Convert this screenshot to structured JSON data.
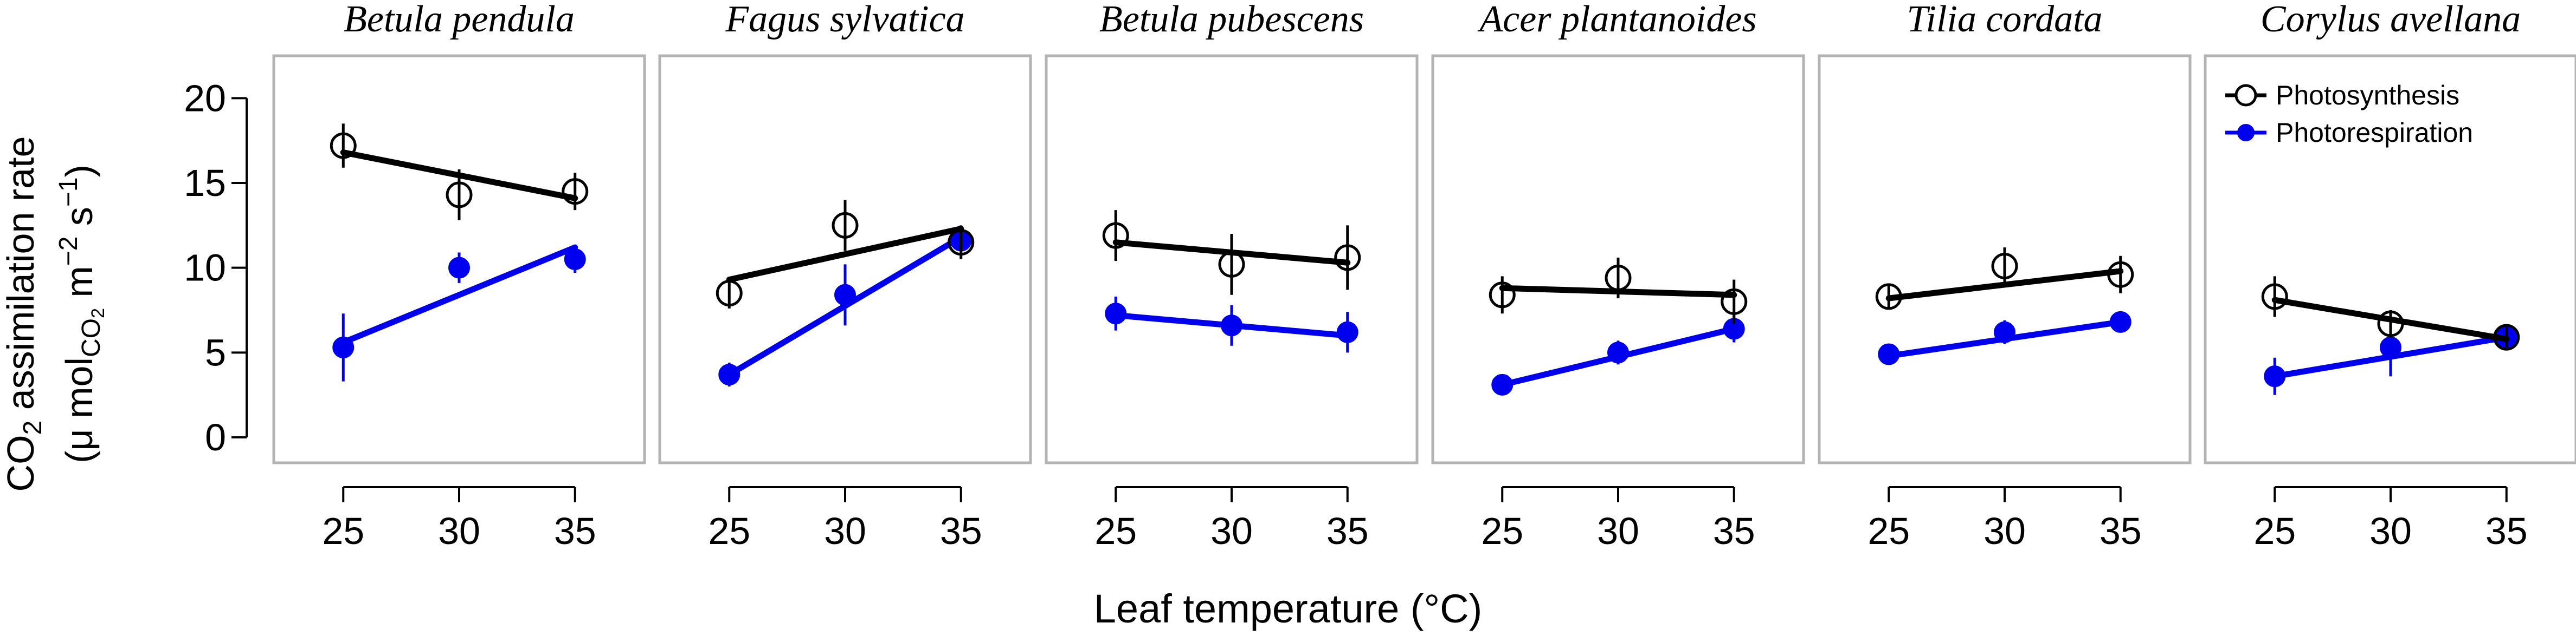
{
  "chart_data": {
    "type": "line",
    "xlabel": "Leaf temperature (°C)",
    "ylabel_line1_main": "CO",
    "ylabel_line1_sub": "2",
    "ylabel_line1_rest": " assimilation rate",
    "ylabel_line2": "(μ mol",
    "ylabel_line2_sub": "CO",
    "ylabel_line2_subsub": "2",
    "ylabel_line2_rest": " m",
    "ylabel_line2_exp1": "−2",
    "ylabel_line2_s": " s",
    "ylabel_line2_exp2": "−1",
    "ylabel_line2_close": ")",
    "xlim": [
      22,
      38
    ],
    "ylim": [
      -1.5,
      22.5
    ],
    "x_ticks": [
      25,
      30,
      35
    ],
    "y_ticks": [
      0,
      5,
      10,
      15,
      20
    ],
    "legend": {
      "placement": "top-right",
      "entries": [
        "Photosynthesis",
        "Photorespiration"
      ]
    },
    "colors": {
      "Photosynthesis": "#000000",
      "Photorespiration": "#0000ee",
      "frame": "#b3b3b3"
    },
    "panels": [
      {
        "title": "Betula pendula",
        "series": [
          {
            "name": "Photosynthesis",
            "x": [
              25,
              30,
              35
            ],
            "y": [
              17.2,
              14.3,
              14.5
            ],
            "err": [
              1.3,
              1.5,
              1.1
            ],
            "fit": [
              16.8,
              14.1
            ]
          },
          {
            "name": "Photorespiration",
            "x": [
              25,
              30,
              35
            ],
            "y": [
              5.3,
              10.0,
              10.5
            ],
            "err": [
              2.0,
              0.9,
              0.8
            ],
            "fit": [
              5.6,
              11.2
            ]
          }
        ]
      },
      {
        "title": "Fagus sylvatica",
        "series": [
          {
            "name": "Photosynthesis",
            "x": [
              25,
              30,
              35
            ],
            "y": [
              8.5,
              12.5,
              11.5
            ],
            "err": [
              0.9,
              1.5,
              1.0
            ],
            "fit": [
              9.3,
              12.3
            ]
          },
          {
            "name": "Photorespiration",
            "x": [
              25,
              30,
              35
            ],
            "y": [
              3.7,
              8.4,
              11.6
            ],
            "err": [
              0.7,
              1.8,
              0.8
            ],
            "fit": [
              3.7,
              11.8
            ]
          }
        ]
      },
      {
        "title": "Betula pubescens",
        "series": [
          {
            "name": "Photosynthesis",
            "x": [
              25,
              30,
              35
            ],
            "y": [
              11.9,
              10.2,
              10.6
            ],
            "err": [
              1.5,
              1.8,
              1.9
            ],
            "fit": [
              11.5,
              10.3
            ]
          },
          {
            "name": "Photorespiration",
            "x": [
              25,
              30,
              35
            ],
            "y": [
              7.3,
              6.6,
              6.2
            ],
            "err": [
              1.0,
              1.2,
              1.2
            ],
            "fit": [
              7.2,
              6.0
            ]
          }
        ]
      },
      {
        "title": "Acer plantanoides",
        "series": [
          {
            "name": "Photosynthesis",
            "x": [
              25,
              30,
              35
            ],
            "y": [
              8.4,
              9.4,
              8.0
            ],
            "err": [
              1.1,
              1.2,
              1.3
            ],
            "fit": [
              8.8,
              8.4
            ]
          },
          {
            "name": "Photorespiration",
            "x": [
              25,
              30,
              35
            ],
            "y": [
              3.1,
              5.0,
              6.4
            ],
            "err": [
              0.4,
              0.7,
              0.8
            ],
            "fit": [
              3.1,
              6.4
            ]
          }
        ]
      },
      {
        "title": "Tilia cordata",
        "series": [
          {
            "name": "Photosynthesis",
            "x": [
              25,
              30,
              35
            ],
            "y": [
              8.3,
              10.1,
              9.6
            ],
            "err": [
              0.7,
              1.1,
              1.1
            ],
            "fit": [
              8.2,
              9.8
            ]
          },
          {
            "name": "Photorespiration",
            "x": [
              25,
              30,
              35
            ],
            "y": [
              4.9,
              6.2,
              6.8
            ],
            "err": [
              0.4,
              0.7,
              0.5
            ],
            "fit": [
              4.8,
              6.8
            ]
          }
        ]
      },
      {
        "title": "Corylus avellana",
        "series": [
          {
            "name": "Photosynthesis",
            "x": [
              25,
              30,
              35
            ],
            "y": [
              8.3,
              6.7,
              5.9
            ],
            "err": [
              1.2,
              0.8,
              0.6
            ],
            "fit": [
              8.1,
              5.8
            ]
          },
          {
            "name": "Photorespiration",
            "x": [
              25,
              30,
              35
            ],
            "y": [
              3.6,
              5.3,
              5.9
            ],
            "err": [
              1.1,
              1.7,
              0.6
            ],
            "fit": [
              3.6,
              5.9
            ]
          }
        ]
      }
    ]
  }
}
